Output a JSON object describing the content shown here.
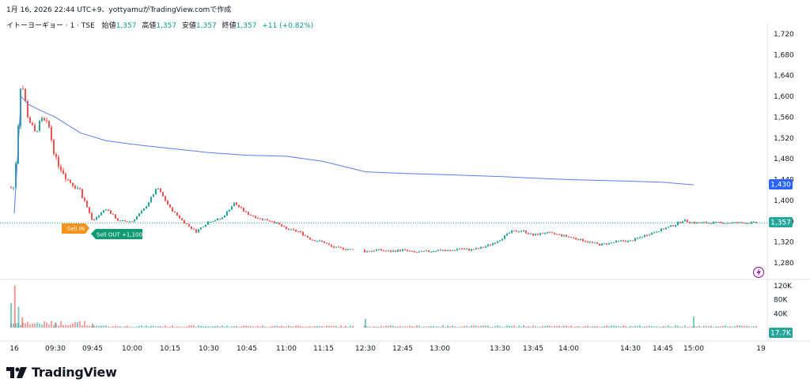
{
  "header": {
    "snapshot_text": "1月 16, 2026 22:44 UTC+9、yottyamuがTradingView.comで作成"
  },
  "legend": {
    "symbol": "イトーヨーギョー · 1 · TSE",
    "open_label": "始値",
    "open_value": "1,357",
    "high_label": "高値",
    "high_value": "1,357",
    "low_label": "安値",
    "low_value": "1,357",
    "close_label": "終値",
    "close_value": "1,357",
    "change": "+11 (+0.82%)"
  },
  "markers": {
    "sell_in": "Sell IN",
    "sell_out": "Sell OUT +1,100"
  },
  "price_badges": {
    "vwap": "1,430",
    "last": "1,357",
    "volume": "17.7K"
  },
  "footer": {
    "brand": "TradingView"
  },
  "colors": {
    "up": "#26a69a",
    "down": "#ef5350",
    "vwap": "#5b7ee5",
    "sell_in": "#f7931a",
    "sell_out": "#0e9a72"
  },
  "chart_data": {
    "type": "candlestick",
    "price_axis": {
      "ticks": [
        1720,
        1680,
        1640,
        1600,
        1560,
        1520,
        1480,
        1440,
        1400,
        1360,
        1320,
        1280
      ],
      "labels": [
        "1,720",
        "1,680",
        "1,640",
        "1,600",
        "1,560",
        "1,520",
        "1,480",
        "1,440",
        "1,400",
        "1,360",
        "1,320",
        "1,280"
      ]
    },
    "volume_axis": {
      "ticks": [
        120000,
        80000,
        40000
      ],
      "labels": [
        "120K",
        "80K",
        "40K"
      ]
    },
    "time_axis": {
      "labels": [
        "16",
        "09:30",
        "09:45",
        "10:00",
        "10:15",
        "10:30",
        "10:45",
        "11:00",
        "11:15",
        "12:30",
        "12:45",
        "13:00",
        "13:30",
        "13:45",
        "14:00",
        "14:30",
        "14:45",
        "15:00",
        "19"
      ]
    },
    "price_points": [
      {
        "t": "09:00",
        "p": 1425
      },
      {
        "t": "09:05",
        "p": 1635
      },
      {
        "t": "09:10",
        "p": 1560
      },
      {
        "t": "09:15",
        "p": 1530
      },
      {
        "t": "09:20",
        "p": 1555
      },
      {
        "t": "09:25",
        "p": 1545
      },
      {
        "t": "09:30",
        "p": 1480
      },
      {
        "t": "09:35",
        "p": 1440
      },
      {
        "t": "09:40",
        "p": 1420
      },
      {
        "t": "09:45",
        "p": 1360
      },
      {
        "t": "09:50",
        "p": 1385
      },
      {
        "t": "09:55",
        "p": 1360
      },
      {
        "t": "10:00",
        "p": 1360
      },
      {
        "t": "10:05",
        "p": 1385
      },
      {
        "t": "10:10",
        "p": 1425
      },
      {
        "t": "10:15",
        "p": 1385
      },
      {
        "t": "10:20",
        "p": 1360
      },
      {
        "t": "10:25",
        "p": 1340
      },
      {
        "t": "10:30",
        "p": 1360
      },
      {
        "t": "10:35",
        "p": 1365
      },
      {
        "t": "10:40",
        "p": 1395
      },
      {
        "t": "10:45",
        "p": 1375
      },
      {
        "t": "10:50",
        "p": 1365
      },
      {
        "t": "10:55",
        "p": 1360
      },
      {
        "t": "11:00",
        "p": 1345
      },
      {
        "t": "11:05",
        "p": 1340
      },
      {
        "t": "11:10",
        "p": 1325
      },
      {
        "t": "11:15",
        "p": 1320
      },
      {
        "t": "11:20",
        "p": 1310
      },
      {
        "t": "11:25",
        "p": 1308
      },
      {
        "t": "12:30",
        "p": 1302
      },
      {
        "t": "12:35",
        "p": 1305
      },
      {
        "t": "12:40",
        "p": 1302
      },
      {
        "t": "12:45",
        "p": 1305
      },
      {
        "t": "12:50",
        "p": 1300
      },
      {
        "t": "12:55",
        "p": 1302
      },
      {
        "t": "13:00",
        "p": 1305
      },
      {
        "t": "13:05",
        "p": 1303
      },
      {
        "t": "13:10",
        "p": 1308
      },
      {
        "t": "13:15",
        "p": 1305
      },
      {
        "t": "13:20",
        "p": 1308
      },
      {
        "t": "13:25",
        "p": 1315
      },
      {
        "t": "13:30",
        "p": 1325
      },
      {
        "t": "13:35",
        "p": 1340
      },
      {
        "t": "13:40",
        "p": 1342
      },
      {
        "t": "13:45",
        "p": 1333
      },
      {
        "t": "13:50",
        "p": 1338
      },
      {
        "t": "13:55",
        "p": 1335
      },
      {
        "t": "14:00",
        "p": 1330
      },
      {
        "t": "14:05",
        "p": 1325
      },
      {
        "t": "14:10",
        "p": 1320
      },
      {
        "t": "14:15",
        "p": 1315
      },
      {
        "t": "14:20",
        "p": 1318
      },
      {
        "t": "14:25",
        "p": 1322
      },
      {
        "t": "14:30",
        "p": 1322
      },
      {
        "t": "14:35",
        "p": 1330
      },
      {
        "t": "14:40",
        "p": 1338
      },
      {
        "t": "14:45",
        "p": 1345
      },
      {
        "t": "14:50",
        "p": 1352
      },
      {
        "t": "14:55",
        "p": 1362
      },
      {
        "t": "15:00",
        "p": 1357
      }
    ],
    "vwap": [
      {
        "t": "09:00",
        "p": 1375
      },
      {
        "t": "09:05",
        "p": 1600
      },
      {
        "t": "09:10",
        "p": 1585
      },
      {
        "t": "09:20",
        "p": 1572
      },
      {
        "t": "09:30",
        "p": 1560
      },
      {
        "t": "09:40",
        "p": 1530
      },
      {
        "t": "09:50",
        "p": 1515
      },
      {
        "t": "10:00",
        "p": 1508
      },
      {
        "t": "10:15",
        "p": 1500
      },
      {
        "t": "10:30",
        "p": 1492
      },
      {
        "t": "10:45",
        "p": 1487
      },
      {
        "t": "11:00",
        "p": 1485
      },
      {
        "t": "11:15",
        "p": 1475
      },
      {
        "t": "12:30",
        "p": 1455
      },
      {
        "t": "12:45",
        "p": 1452
      },
      {
        "t": "13:00",
        "p": 1450
      },
      {
        "t": "13:30",
        "p": 1446
      },
      {
        "t": "13:45",
        "p": 1443
      },
      {
        "t": "14:00",
        "p": 1440
      },
      {
        "t": "14:30",
        "p": 1437
      },
      {
        "t": "14:45",
        "p": 1435
      },
      {
        "t": "15:00",
        "p": 1430
      }
    ],
    "volume_spikes": [
      {
        "t": "09:00",
        "v": 70000
      },
      {
        "t": "09:01",
        "v": 121000
      },
      {
        "t": "09:02",
        "v": 60000
      },
      {
        "t": "09:03",
        "v": 30000
      },
      {
        "t": "09:30",
        "v": 15000
      },
      {
        "t": "09:45",
        "v": 12000
      },
      {
        "t": "12:30",
        "v": 25000
      },
      {
        "t": "15:00",
        "v": 32000
      }
    ]
  }
}
